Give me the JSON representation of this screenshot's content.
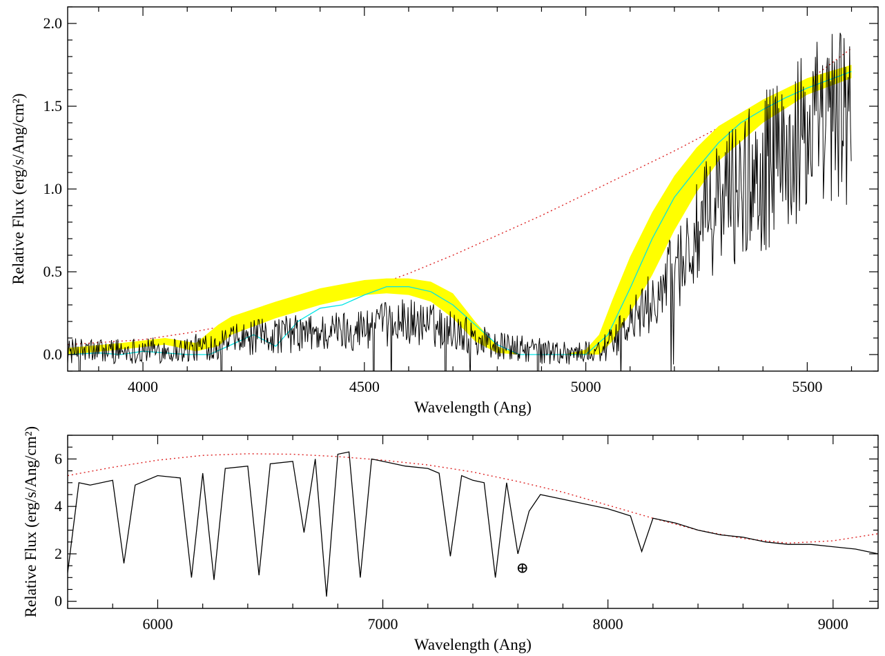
{
  "chart_data": [
    {
      "type": "line",
      "panel": "top",
      "xlabel": "Wavelength (Ang)",
      "ylabel": "Relative Flux (erg/s/Ang/cm²)",
      "xlim": [
        3830,
        5660
      ],
      "ylim": [
        -0.1,
        2.1
      ],
      "xticks": [
        4000,
        4500,
        5000,
        5500
      ],
      "yticks": [
        0.0,
        0.5,
        1.0,
        1.5,
        2.0
      ],
      "xtick_labels": [
        "4000",
        "4500",
        "5000",
        "5500"
      ],
      "ytick_labels": [
        "0.0",
        "0.5",
        "1.0",
        "1.5",
        "2.0"
      ],
      "grid": false,
      "legend": "none",
      "series": [
        {
          "style": "dotted",
          "color": "#dd2222",
          "x": [
            3830,
            4000,
            4100,
            4200,
            4300,
            4400,
            4500,
            4600,
            4700,
            4800,
            4900,
            5000,
            5100,
            5200,
            5300,
            5400,
            5500,
            5600
          ],
          "y": [
            0.06,
            0.09,
            0.13,
            0.18,
            0.24,
            0.31,
            0.39,
            0.49,
            0.6,
            0.72,
            0.84,
            0.97,
            1.1,
            1.23,
            1.37,
            1.51,
            1.65,
            1.85
          ]
        },
        {
          "style": "band",
          "color": "#ffff00",
          "x": [
            3830,
            3950,
            4050,
            4120,
            4170,
            4200,
            4300,
            4400,
            4500,
            4550,
            4600,
            4650,
            4700,
            4750,
            4800,
            4850,
            4900,
            4950,
            5000,
            5030,
            5060,
            5100,
            5150,
            5200,
            5250,
            5300,
            5400,
            5500,
            5600
          ],
          "y_low": [
            0.0,
            0.03,
            0.06,
            0.02,
            0.05,
            0.12,
            0.22,
            0.3,
            0.36,
            0.37,
            0.36,
            0.32,
            0.22,
            0.08,
            0.01,
            0.0,
            0.0,
            0.0,
            0.0,
            0.0,
            0.08,
            0.25,
            0.48,
            0.75,
            0.98,
            1.17,
            1.4,
            1.57,
            1.67
          ],
          "y_high": [
            0.04,
            0.07,
            0.1,
            0.07,
            0.18,
            0.23,
            0.32,
            0.4,
            0.45,
            0.46,
            0.46,
            0.44,
            0.37,
            0.2,
            0.05,
            0.0,
            0.0,
            0.0,
            0.03,
            0.12,
            0.33,
            0.59,
            0.86,
            1.08,
            1.25,
            1.38,
            1.54,
            1.67,
            1.75
          ]
        },
        {
          "style": "solid",
          "color": "#00e5e5",
          "x": [
            3830,
            3900,
            3950,
            4000,
            4050,
            4100,
            4150,
            4200,
            4250,
            4300,
            4350,
            4400,
            4450,
            4500,
            4550,
            4600,
            4650,
            4700,
            4750,
            4800,
            4850,
            4900,
            4950,
            5000,
            5050,
            5100,
            5150,
            5200,
            5250,
            5300,
            5350,
            5400,
            5450,
            5500,
            5550,
            5600
          ],
          "y": [
            0.0,
            0.01,
            0.0,
            0.02,
            0.01,
            0.0,
            0.0,
            0.06,
            0.12,
            0.05,
            0.2,
            0.28,
            0.3,
            0.36,
            0.41,
            0.41,
            0.38,
            0.3,
            0.18,
            0.06,
            0.0,
            0.0,
            0.0,
            0.0,
            0.12,
            0.4,
            0.7,
            0.95,
            1.12,
            1.28,
            1.4,
            1.48,
            1.55,
            1.61,
            1.66,
            1.71
          ]
        },
        {
          "style": "solid",
          "color": "#000000",
          "noisy": true,
          "x": [
            3830,
            4100,
            4200,
            4300,
            4400,
            4500,
            4600,
            4700,
            4800,
            4900,
            5000,
            5050,
            5100,
            5150,
            5200,
            5250,
            5300,
            5400,
            5500,
            5600
          ],
          "y": [
            0.02,
            0.03,
            0.08,
            0.12,
            0.13,
            0.16,
            0.2,
            0.15,
            0.05,
            0.02,
            0.01,
            0.05,
            0.18,
            0.32,
            0.5,
            0.7,
            0.92,
            1.1,
            1.3,
            1.45
          ]
        }
      ]
    },
    {
      "type": "line",
      "panel": "bottom",
      "xlabel": "Wavelength (Ang)",
      "ylabel": "Relative Flux (erg/s/Ang/cm²)",
      "xlim": [
        5600,
        9200
      ],
      "ylim": [
        -0.3,
        7.0
      ],
      "xticks": [
        6000,
        7000,
        8000,
        9000
      ],
      "yticks": [
        0,
        2,
        4,
        6
      ],
      "xtick_labels": [
        "6000",
        "7000",
        "8000",
        "9000"
      ],
      "ytick_labels": [
        "0",
        "2",
        "4",
        "6"
      ],
      "grid": false,
      "legend": "none",
      "annotation": {
        "text": "⊕",
        "x": 7620,
        "y": 1.2
      },
      "series": [
        {
          "style": "dotted",
          "color": "#dd2222",
          "x": [
            5600,
            5800,
            6000,
            6200,
            6400,
            6600,
            6800,
            7000,
            7200,
            7400,
            7600,
            7800,
            8000,
            8200,
            8400,
            8600,
            8800,
            9000,
            9200
          ],
          "y": [
            5.3,
            5.65,
            5.95,
            6.15,
            6.22,
            6.2,
            6.1,
            5.95,
            5.75,
            5.45,
            5.05,
            4.6,
            4.05,
            3.5,
            3.0,
            2.65,
            2.45,
            2.55,
            2.85
          ]
        },
        {
          "style": "solid",
          "color": "#000000",
          "x": [
            5600,
            5650,
            5700,
            5800,
            5850,
            5900,
            6000,
            6100,
            6150,
            6200,
            6250,
            6300,
            6400,
            6450,
            6500,
            6600,
            6650,
            6700,
            6750,
            6800,
            6850,
            6900,
            6950,
            7000,
            7100,
            7200,
            7250,
            7300,
            7350,
            7400,
            7450,
            7500,
            7550,
            7600,
            7650,
            7700,
            7800,
            7900,
            8000,
            8100,
            8150,
            8200,
            8300,
            8400,
            8500,
            8600,
            8700,
            8800,
            8900,
            9000,
            9100,
            9200
          ],
          "y": [
            1.2,
            5.0,
            4.9,
            5.1,
            1.6,
            4.9,
            5.3,
            5.2,
            1.0,
            5.4,
            0.9,
            5.6,
            5.7,
            1.1,
            5.8,
            5.9,
            2.9,
            6.0,
            0.2,
            6.2,
            6.3,
            1.0,
            6.0,
            5.9,
            5.7,
            5.6,
            5.4,
            1.9,
            5.3,
            5.1,
            5.0,
            1.0,
            5.0,
            2.0,
            3.8,
            4.5,
            4.3,
            4.1,
            3.9,
            3.6,
            2.1,
            3.5,
            3.3,
            3.0,
            2.8,
            2.7,
            2.5,
            2.4,
            2.4,
            2.3,
            2.2,
            2.0
          ]
        }
      ]
    }
  ]
}
